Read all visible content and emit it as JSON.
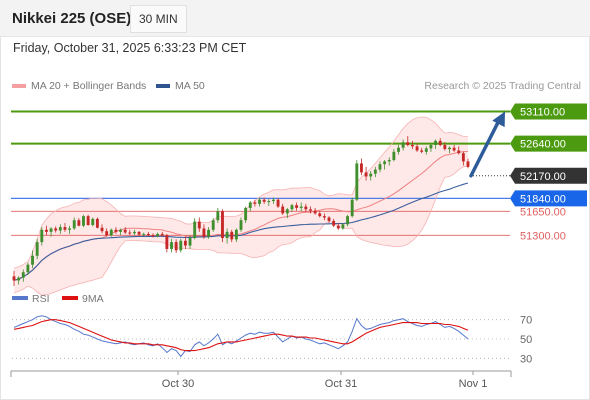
{
  "header": {
    "title": "Nikkei 225 (OSE)",
    "interval": "30 MIN"
  },
  "datetime": "Friday, October 31, 2025 6:33:23 PM CET",
  "legend": {
    "ma20_label": "MA 20 + Bollinger Bands",
    "ma50_label": "MA 50",
    "credit": "Research © 2025 Trading Central"
  },
  "colors": {
    "up": "#3f8f2e",
    "down": "#c62828",
    "ma20": "#f08080",
    "band": "#fde0e0",
    "ma50": "#3a5f9e",
    "resistance": "#4c9a0f",
    "support_blue": "#4d7ee8",
    "support_red": "#e06060",
    "arrow": "#2e5c9a",
    "rsi": "#5577cc",
    "rsi_ma": "#dd1111"
  },
  "rsi_legend": {
    "rsi_label": "RSI",
    "ma_label": "9MA"
  },
  "chart_data": [
    {
      "type": "candlestick",
      "title": "Nikkei 225 (OSE)",
      "ylim": [
        50500,
        53380
      ],
      "x_ticks": [
        "Oct 30",
        "Oct 31",
        "Nov 1"
      ],
      "candles": [
        [
          50700,
          50780,
          50560,
          50640
        ],
        [
          50640,
          50700,
          50580,
          50680
        ],
        [
          50680,
          50800,
          50620,
          50760
        ],
        [
          50760,
          50900,
          50720,
          50870
        ],
        [
          50870,
          51080,
          50820,
          51000
        ],
        [
          51000,
          51250,
          50950,
          51200
        ],
        [
          51200,
          51420,
          51150,
          51380
        ],
        [
          51380,
          51440,
          51300,
          51350
        ],
        [
          51350,
          51420,
          51280,
          51400
        ],
        [
          51400,
          51430,
          51340,
          51370
        ],
        [
          51370,
          51460,
          51320,
          51420
        ],
        [
          51420,
          51480,
          51350,
          51380
        ],
        [
          51380,
          51440,
          51320,
          51400
        ],
        [
          51400,
          51560,
          51380,
          51520
        ],
        [
          51520,
          51550,
          51430,
          51440
        ],
        [
          51440,
          51600,
          51420,
          51580
        ],
        [
          51580,
          51600,
          51440,
          51450
        ],
        [
          51450,
          51560,
          51430,
          51540
        ],
        [
          51540,
          51560,
          51400,
          51410
        ],
        [
          51410,
          51460,
          51330,
          51360
        ],
        [
          51360,
          51400,
          51280,
          51300
        ],
        [
          51300,
          51400,
          51280,
          51380
        ],
        [
          51380,
          51420,
          51320,
          51350
        ],
        [
          51350,
          51400,
          51300,
          51380
        ],
        [
          51380,
          51420,
          51320,
          51340
        ],
        [
          51340,
          51380,
          51300,
          51330
        ],
        [
          51330,
          51380,
          51300,
          51350
        ],
        [
          51350,
          51360,
          51290,
          51310
        ],
        [
          51310,
          51340,
          51290,
          51320
        ],
        [
          51320,
          51350,
          51290,
          51300
        ],
        [
          51300,
          51330,
          51270,
          51290
        ],
        [
          51290,
          51340,
          51270,
          51320
        ],
        [
          51320,
          51350,
          51280,
          51300
        ],
        [
          51300,
          51320,
          51050,
          51100
        ],
        [
          51100,
          51250,
          51050,
          51200
        ],
        [
          51200,
          51240,
          51040,
          51080
        ],
        [
          51080,
          51250,
          51050,
          51220
        ],
        [
          51220,
          51280,
          51100,
          51150
        ],
        [
          51150,
          51300,
          51100,
          51260
        ],
        [
          51260,
          51550,
          51240,
          51500
        ],
        [
          51500,
          51560,
          51350,
          51400
        ],
        [
          51400,
          51460,
          51250,
          51280
        ],
        [
          51280,
          51420,
          51250,
          51380
        ],
        [
          51380,
          51550,
          51350,
          51520
        ],
        [
          51520,
          51700,
          51480,
          51650
        ],
        [
          51650,
          51680,
          51200,
          51260
        ],
        [
          51260,
          51400,
          51180,
          51350
        ],
        [
          51350,
          51380,
          51200,
          51240
        ],
        [
          51240,
          51400,
          51200,
          51380
        ],
        [
          51380,
          51560,
          51350,
          51520
        ],
        [
          51520,
          51720,
          51480,
          51700
        ],
        [
          51700,
          51800,
          51650,
          51780
        ],
        [
          51780,
          51820,
          51720,
          51760
        ],
        [
          51760,
          51850,
          51720,
          51820
        ],
        [
          51820,
          51850,
          51760,
          51790
        ],
        [
          51790,
          51830,
          51730,
          51800
        ],
        [
          51800,
          51850,
          51760,
          51820
        ],
        [
          51820,
          51840,
          51700,
          51720
        ],
        [
          51720,
          51760,
          51600,
          51620
        ],
        [
          51620,
          51700,
          51550,
          51680
        ],
        [
          51680,
          51760,
          51640,
          51740
        ],
        [
          51740,
          51780,
          51660,
          51700
        ],
        [
          51700,
          51780,
          51650,
          51720
        ],
        [
          51720,
          51760,
          51640,
          51680
        ],
        [
          51680,
          51720,
          51620,
          51660
        ],
        [
          51660,
          51700,
          51600,
          51620
        ],
        [
          51620,
          51650,
          51560,
          51580
        ],
        [
          51580,
          51620,
          51520,
          51560
        ],
        [
          51560,
          51580,
          51480,
          51510
        ],
        [
          51510,
          51540,
          51420,
          51440
        ],
        [
          51440,
          51480,
          51380,
          51400
        ],
        [
          51400,
          51480,
          51380,
          51460
        ],
        [
          51460,
          51600,
          51430,
          51580
        ],
        [
          51580,
          51850,
          51560,
          51820
        ],
        [
          51820,
          52400,
          51800,
          52350
        ],
        [
          52350,
          52420,
          52180,
          52220
        ],
        [
          52220,
          52300,
          52100,
          52160
        ],
        [
          52160,
          52240,
          52100,
          52200
        ],
        [
          52200,
          52300,
          52150,
          52260
        ],
        [
          52260,
          52380,
          52220,
          52340
        ],
        [
          52340,
          52400,
          52260,
          52380
        ],
        [
          52380,
          52440,
          52320,
          52400
        ],
        [
          52400,
          52560,
          52380,
          52520
        ],
        [
          52520,
          52620,
          52480,
          52580
        ],
        [
          52580,
          52700,
          52540,
          52660
        ],
        [
          52660,
          52750,
          52600,
          52620
        ],
        [
          52620,
          52680,
          52560,
          52600
        ],
        [
          52600,
          52640,
          52520,
          52540
        ],
        [
          52540,
          52580,
          52500,
          52520
        ],
        [
          52520,
          52600,
          52480,
          52570
        ],
        [
          52570,
          52640,
          52520,
          52620
        ],
        [
          52620,
          52700,
          52560,
          52680
        ],
        [
          52680,
          52720,
          52600,
          52620
        ],
        [
          52620,
          52660,
          52540,
          52560
        ],
        [
          52560,
          52600,
          52500,
          52580
        ],
        [
          52580,
          52620,
          52520,
          52540
        ],
        [
          52540,
          52600,
          52480,
          52500
        ],
        [
          52500,
          52520,
          52320,
          52380
        ],
        [
          52380,
          52420,
          52280,
          52300
        ]
      ],
      "series": [
        {
          "name": "MA 20 + Bollinger Bands"
        },
        {
          "name": "MA 50"
        }
      ],
      "levels": [
        {
          "value": 53110,
          "label": "53110.00",
          "style": "resistance"
        },
        {
          "value": 52640,
          "label": "52640.00",
          "style": "resistance"
        },
        {
          "value": 52170,
          "label": "52170.00",
          "style": "current"
        },
        {
          "value": 51840,
          "label": "51840.00",
          "style": "support_blue"
        },
        {
          "value": 51650,
          "label": "51650.00",
          "style": "support_red"
        },
        {
          "value": 51300,
          "label": "51300.00",
          "style": "support_red"
        }
      ],
      "projection": {
        "from": 52170,
        "to": 53110
      }
    },
    {
      "type": "line",
      "title": "RSI",
      "ylim": [
        20,
        80
      ],
      "y_ticks": [
        70,
        50,
        30
      ],
      "series": [
        {
          "name": "RSI",
          "values": [
            62,
            64,
            66,
            68,
            70,
            73,
            74,
            73,
            70,
            68,
            66,
            65,
            63,
            60,
            58,
            55,
            54,
            52,
            50,
            48,
            47,
            46,
            45,
            46,
            47,
            45,
            44,
            45,
            46,
            44,
            43,
            45,
            41,
            36,
            40,
            38,
            32,
            38,
            37,
            44,
            47,
            43,
            46,
            50,
            55,
            44,
            47,
            45,
            48,
            51,
            54,
            56,
            55,
            57,
            56,
            56,
            57,
            52,
            47,
            50,
            53,
            51,
            52,
            50,
            49,
            47,
            45,
            46,
            44,
            42,
            40,
            43,
            47,
            58,
            71,
            64,
            60,
            61,
            63,
            65,
            66,
            67,
            69,
            70,
            71,
            68,
            66,
            64,
            63,
            65,
            66,
            68,
            65,
            62,
            63,
            61,
            58,
            54,
            50
          ]
        },
        {
          "name": "9MA",
          "values": [
            60,
            61,
            62,
            63,
            64,
            66,
            68,
            69,
            70,
            70,
            69,
            68,
            67,
            65,
            63,
            61,
            59,
            57,
            55,
            53,
            51,
            49,
            48,
            47,
            46,
            46,
            45,
            45,
            45,
            45,
            44,
            44,
            44,
            43,
            42,
            41,
            39,
            38,
            38,
            38,
            39,
            40,
            41,
            43,
            45,
            46,
            47,
            47,
            47,
            48,
            49,
            50,
            51,
            52,
            53,
            54,
            55,
            55,
            54,
            53,
            53,
            52,
            52,
            52,
            51,
            51,
            50,
            49,
            48,
            47,
            46,
            45,
            45,
            47,
            50,
            53,
            56,
            58,
            60,
            62,
            63,
            64,
            65,
            66,
            67,
            67,
            67,
            67,
            66,
            66,
            66,
            66,
            66,
            65,
            65,
            64,
            63,
            61,
            59
          ]
        }
      ]
    }
  ]
}
